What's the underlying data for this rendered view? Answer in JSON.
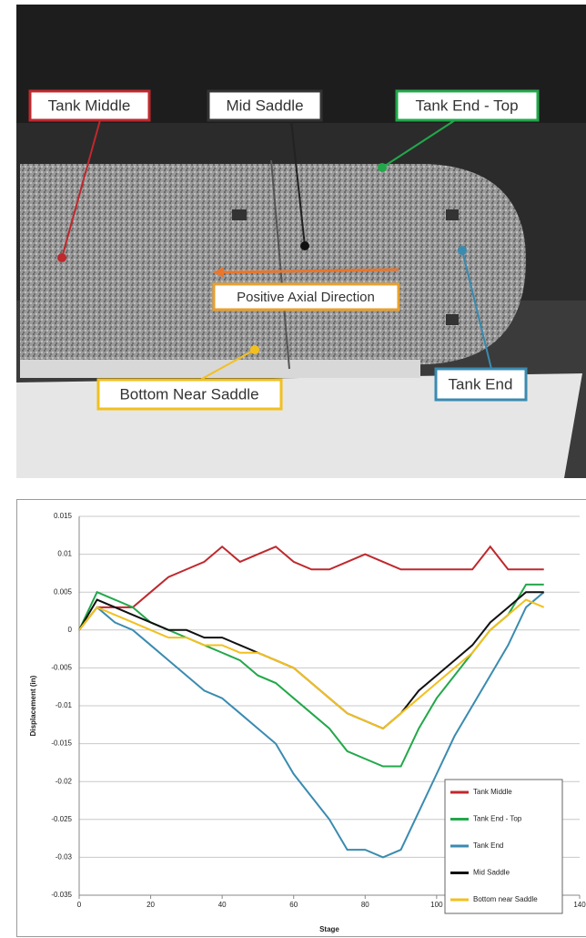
{
  "photo": {
    "labels": [
      "Tank Middle",
      "Mid Saddle",
      "Tank End - Top",
      "Positive Axial Direction",
      "Bottom Near Saddle",
      "Tank End"
    ]
  },
  "chart_data": {
    "type": "line",
    "xlabel": "Stage",
    "ylabel": "Displacement (in)",
    "x": [
      0,
      5,
      10,
      15,
      20,
      25,
      30,
      35,
      40,
      45,
      50,
      55,
      60,
      65,
      70,
      75,
      80,
      85,
      90,
      95,
      100,
      105,
      110,
      115,
      120,
      125,
      130
    ],
    "xlim": [
      0,
      140
    ],
    "xticks": [
      0,
      20,
      40,
      60,
      80,
      100,
      120,
      140
    ],
    "ylim": [
      -0.035,
      0.015
    ],
    "yticks": [
      0.015,
      0.01,
      0.005,
      0,
      -0.005,
      -0.01,
      -0.015,
      -0.02,
      -0.025,
      -0.03,
      -0.035
    ],
    "grid": true,
    "legend": "lower-right",
    "series": [
      {
        "name": "Tank Middle",
        "color": "#c0282d",
        "values": [
          0,
          0.003,
          0.003,
          0.003,
          0.005,
          0.007,
          0.008,
          0.009,
          0.011,
          0.009,
          0.01,
          0.011,
          0.009,
          0.008,
          0.008,
          0.009,
          0.01,
          0.009,
          0.008,
          0.008,
          0.008,
          0.008,
          0.008,
          0.011,
          0.008,
          0.008,
          0.008
        ]
      },
      {
        "name": "Tank End - Top",
        "color": "#22a84a",
        "values": [
          0,
          0.005,
          0.004,
          0.003,
          0.001,
          0,
          -0.001,
          -0.002,
          -0.003,
          -0.004,
          -0.006,
          -0.007,
          -0.009,
          -0.011,
          -0.013,
          -0.016,
          -0.017,
          -0.018,
          -0.018,
          -0.013,
          -0.009,
          -0.006,
          -0.003,
          0,
          0.002,
          0.006,
          0.006
        ]
      },
      {
        "name": "Tank End",
        "color": "#3a8bb0",
        "values": [
          0,
          0.003,
          0.001,
          0,
          -0.002,
          -0.004,
          -0.006,
          -0.008,
          -0.009,
          -0.011,
          -0.013,
          -0.015,
          -0.019,
          -0.022,
          -0.025,
          -0.029,
          -0.029,
          -0.03,
          -0.029,
          -0.024,
          -0.019,
          -0.014,
          -0.01,
          -0.006,
          -0.002,
          0.003,
          0.005
        ]
      },
      {
        "name": "Mid Saddle",
        "color": "#111111",
        "values": [
          0,
          0.004,
          0.003,
          0.002,
          0.001,
          0,
          0,
          -0.001,
          -0.001,
          -0.002,
          -0.003,
          -0.004,
          -0.005,
          -0.007,
          -0.009,
          -0.011,
          -0.012,
          -0.013,
          -0.011,
          -0.008,
          -0.006,
          -0.004,
          -0.002,
          0.001,
          0.003,
          0.005,
          0.005
        ]
      },
      {
        "name": "Bottom near Saddle",
        "color": "#f2c01e",
        "values": [
          0,
          0.003,
          0.002,
          0.001,
          0,
          -0.001,
          -0.001,
          -0.002,
          -0.002,
          -0.003,
          -0.003,
          -0.004,
          -0.005,
          -0.007,
          -0.009,
          -0.011,
          -0.012,
          -0.013,
          -0.011,
          -0.009,
          -0.007,
          -0.005,
          -0.003,
          0,
          0.002,
          0.004,
          0.003
        ]
      }
    ]
  }
}
